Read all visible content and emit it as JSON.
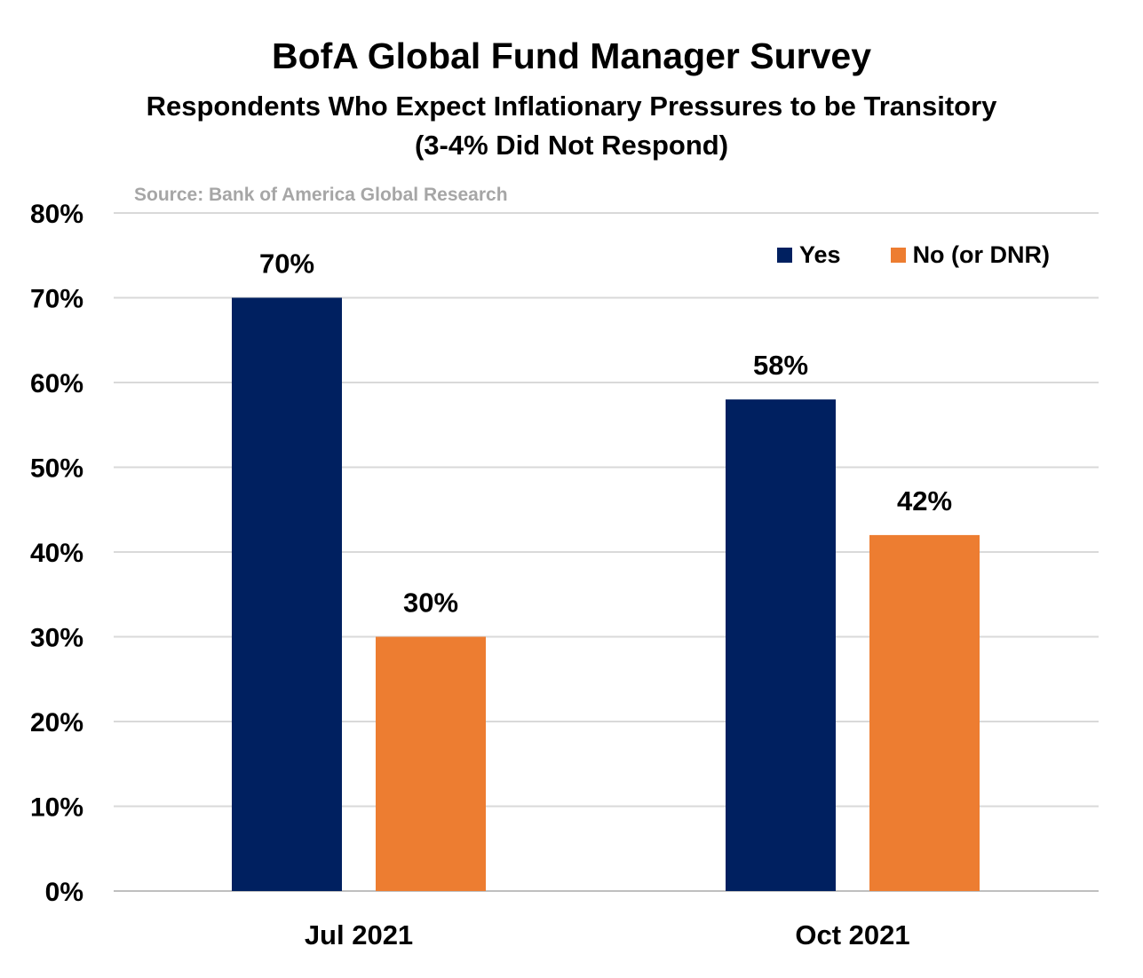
{
  "chart_data": {
    "type": "bar",
    "title": "BofA Global Fund Manager Survey",
    "subtitle_lines": [
      "Respondents Who Expect Inflationary Pressures to be Transitory",
      "(3-4% Did Not Respond)"
    ],
    "source": "Source: Bank of America Global Research",
    "categories": [
      "Jul 2021",
      "Oct 2021"
    ],
    "series": [
      {
        "name": "Yes",
        "values": [
          70,
          58
        ],
        "labels": [
          "70%",
          "58%"
        ],
        "color": "#002060"
      },
      {
        "name": "No (or DNR)",
        "values": [
          30,
          42
        ],
        "labels": [
          "30%",
          "42%"
        ],
        "color": "#ed7d31"
      }
    ],
    "ylim": [
      0,
      80
    ],
    "yticks": [
      0,
      10,
      20,
      30,
      40,
      50,
      60,
      70,
      80
    ],
    "ytick_labels": [
      "0%",
      "10%",
      "20%",
      "30%",
      "40%",
      "50%",
      "60%",
      "70%",
      "80%"
    ],
    "grid": true,
    "legend_position": "top-right",
    "grid_color": "#d9d9d9"
  }
}
